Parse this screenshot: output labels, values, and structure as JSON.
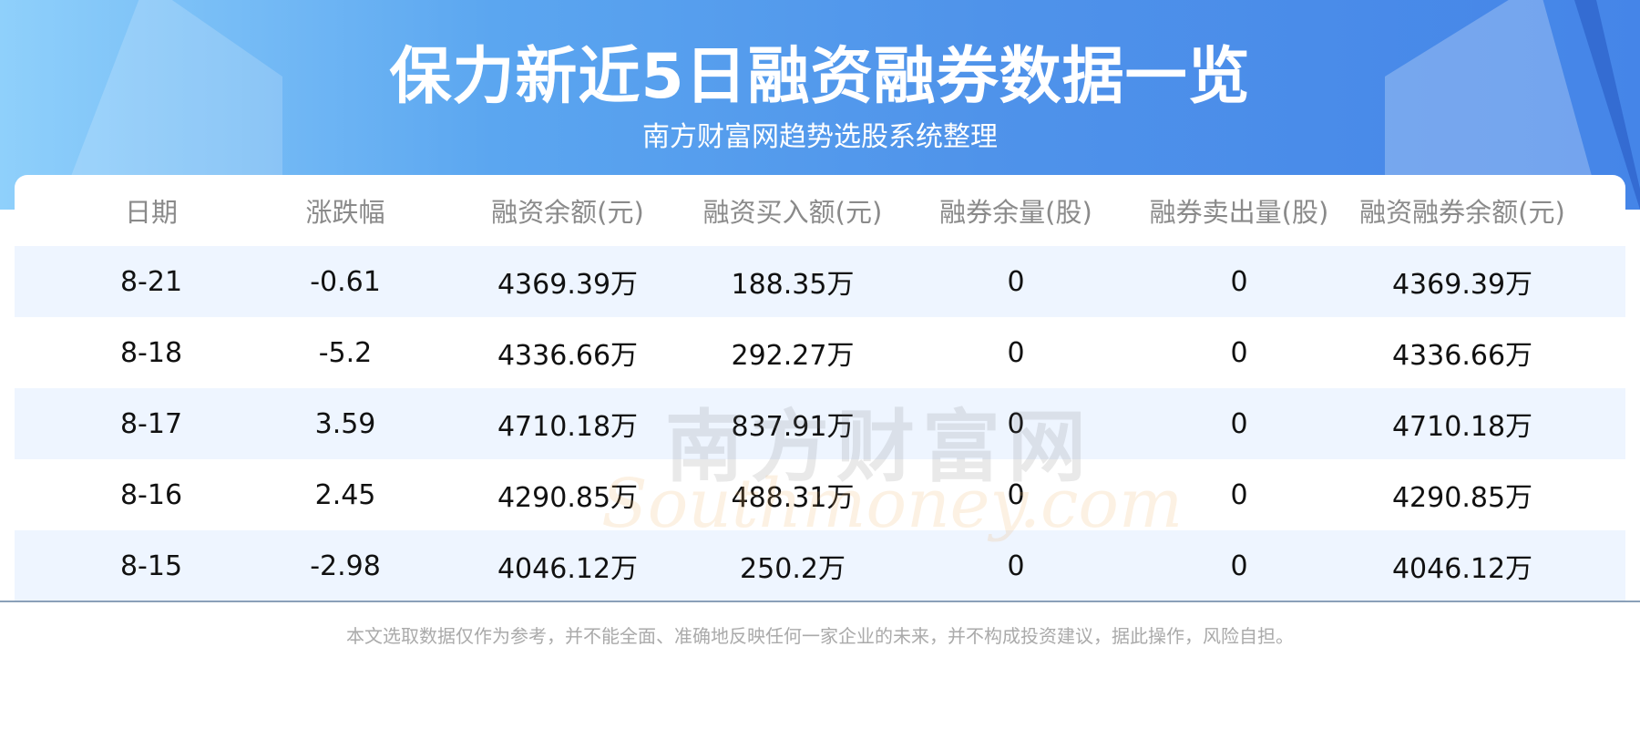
{
  "header": {
    "title": "保力新近5日融资融券数据一览",
    "subtitle": "南方财富网趋势选股系统整理"
  },
  "table": {
    "columns": [
      "日期",
      "涨跌幅",
      "融资余额(元)",
      "融资买入额(元)",
      "融券余量(股)",
      "融券卖出量(股)",
      "融资融券余额(元)"
    ],
    "rows": [
      [
        "8-21",
        "-0.61",
        "4369.39万",
        "188.35万",
        "0",
        "0",
        "4369.39万"
      ],
      [
        "8-18",
        "-5.2",
        "4336.66万",
        "292.27万",
        "0",
        "0",
        "4336.66万"
      ],
      [
        "8-17",
        "3.59",
        "4710.18万",
        "837.91万",
        "0",
        "0",
        "4710.18万"
      ],
      [
        "8-16",
        "2.45",
        "4290.85万",
        "488.31万",
        "0",
        "0",
        "4290.85万"
      ],
      [
        "8-15",
        "-2.98",
        "4046.12万",
        "250.2万",
        "0",
        "0",
        "4046.12万"
      ]
    ]
  },
  "watermark": {
    "cn": "南方财富网",
    "en": "Southmoney.com"
  },
  "footer": {
    "disclaimer": "本文选取数据仅作为参考，并不能全面、准确地反映任何一家企业的未来，并不构成投资建议，据此操作，风险自担。"
  },
  "colors": {
    "banner": "#4f93ea",
    "row_alt": "#eef5ff",
    "header_text": "#8a8a8a"
  }
}
